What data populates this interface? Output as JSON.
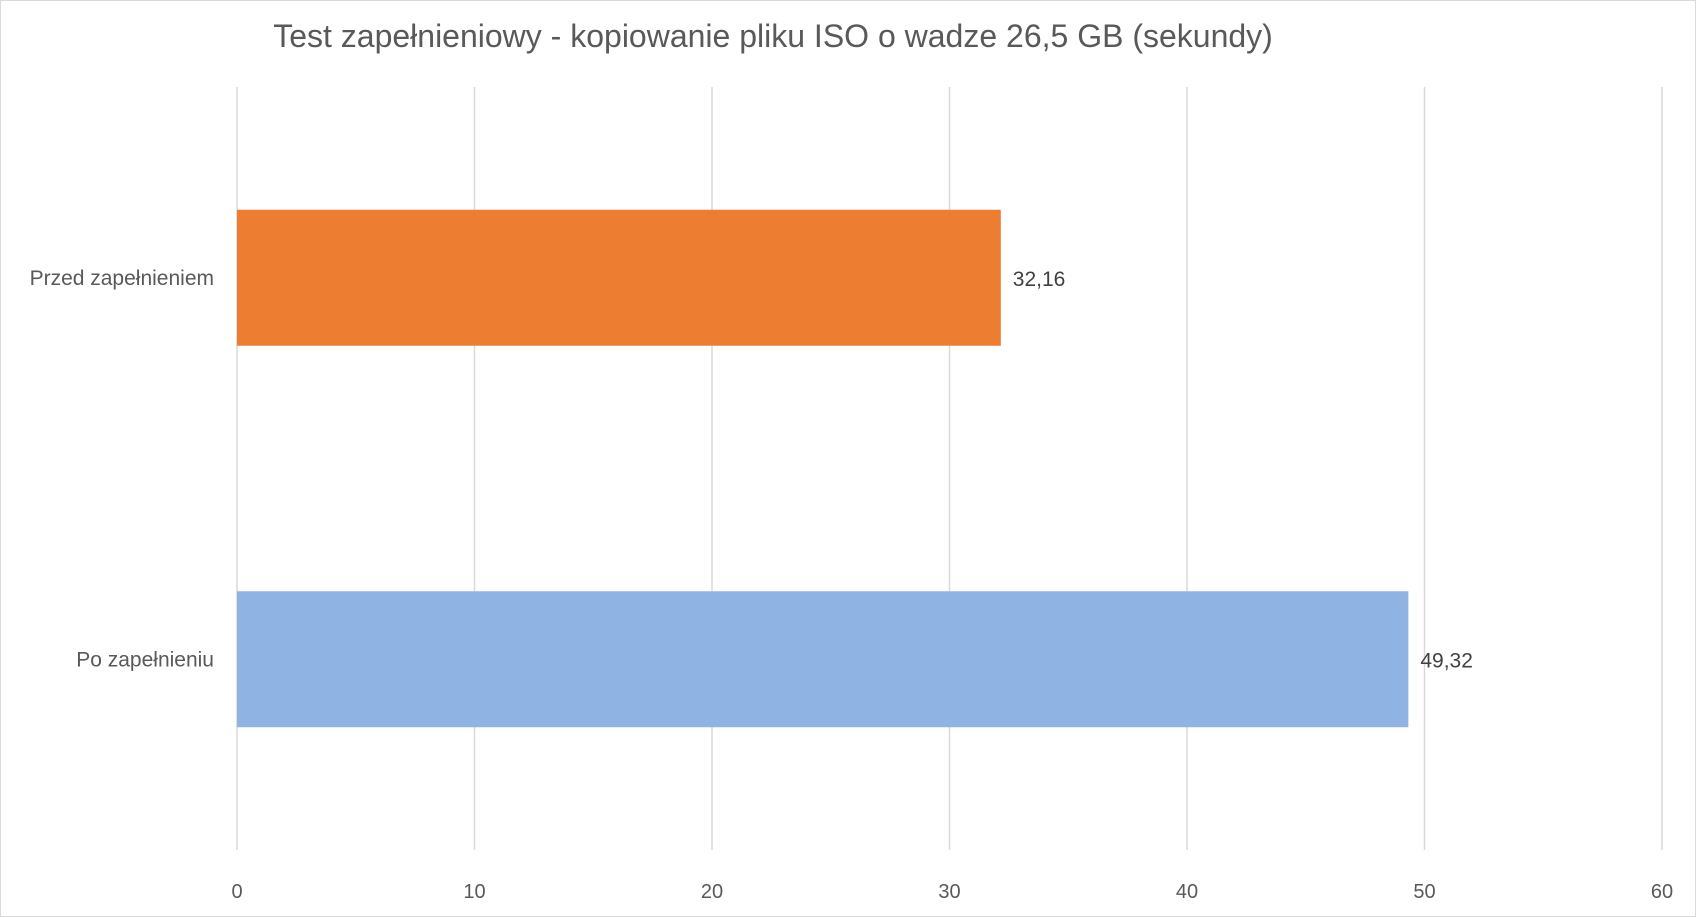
{
  "chart_data": {
    "type": "bar",
    "orientation": "horizontal",
    "title": "Test zapełnieniowy - kopiowanie pliku ISO o wadze 26,5 GB (sekundy)",
    "categories": [
      "Przed zapełnieniem",
      "Po zapełnieniu"
    ],
    "values": [
      32.16,
      49.32
    ],
    "value_labels": [
      "32,16",
      "49,32"
    ],
    "bar_colors": [
      "#ED7D31",
      "#8FB3E2"
    ],
    "xlim": [
      0,
      60
    ],
    "xticks": [
      "0",
      "10",
      "20",
      "30",
      "40",
      "50",
      "60"
    ],
    "xlabel": "",
    "ylabel": "",
    "grid": true,
    "legend": "none"
  }
}
